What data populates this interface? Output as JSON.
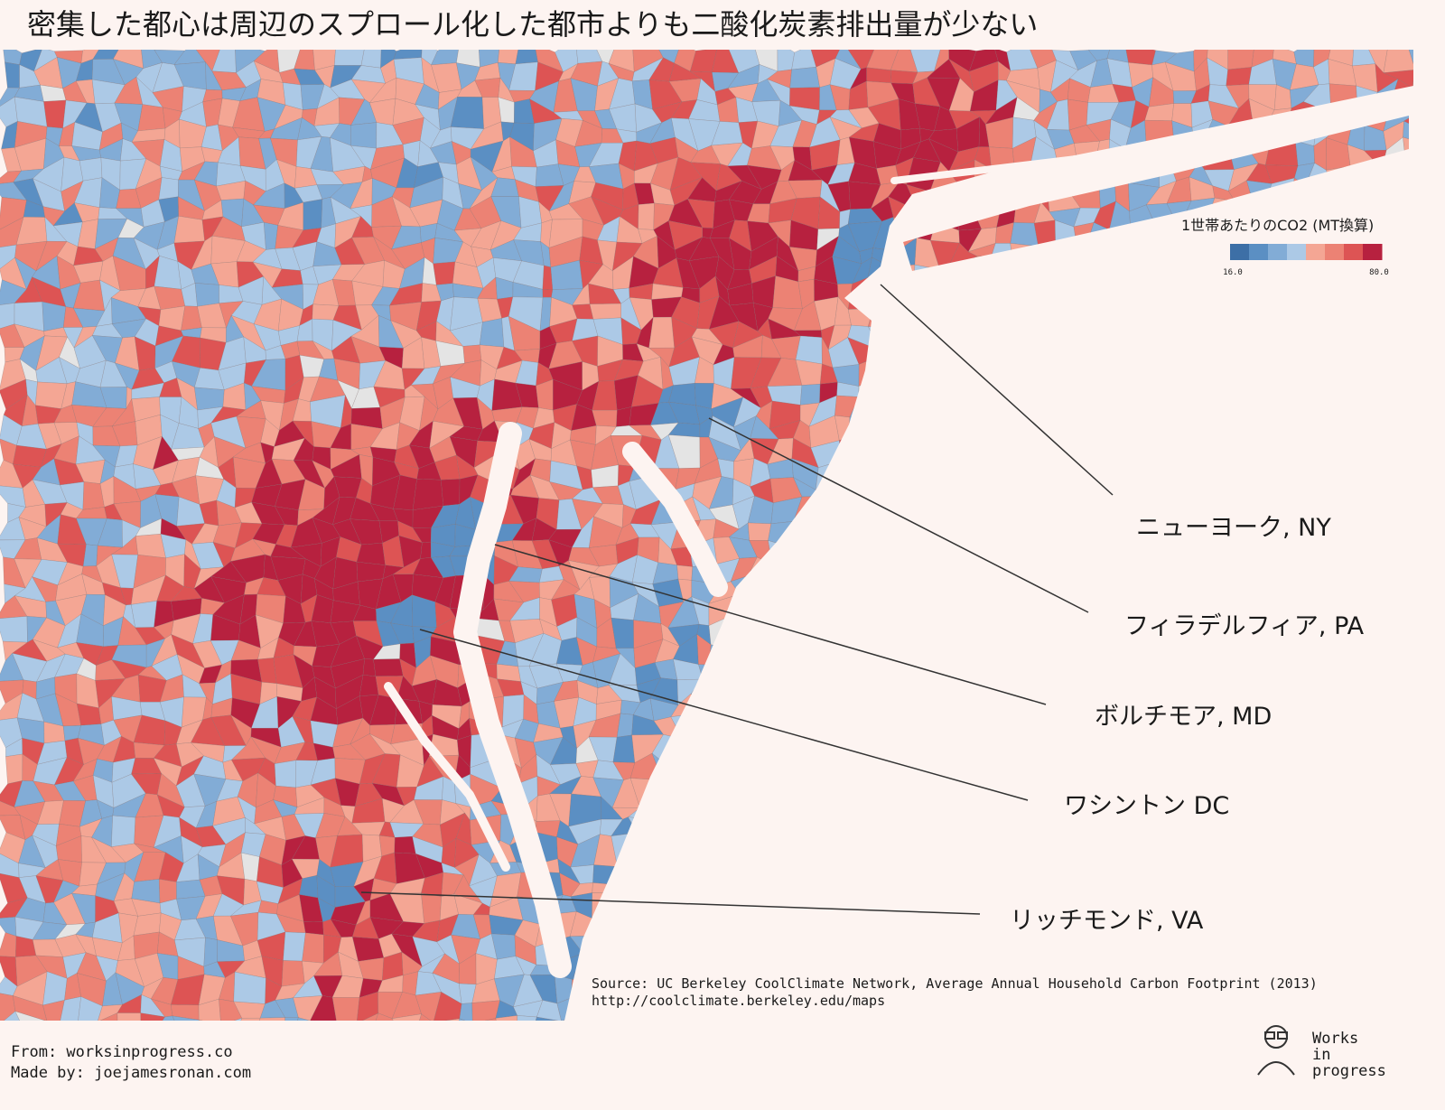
{
  "title": "密集した都心は周辺のスプロール化した都市よりも二酸化炭素排出量が少ない",
  "legend": {
    "title": "1世帯あたりのCO2 (MT換算)",
    "min_label": "16.0",
    "max_label": "80.0",
    "colors": [
      "#3d6fa6",
      "#5b8fc3",
      "#82acd6",
      "#acc9e6",
      "#f4a694",
      "#ec8274",
      "#dd5454",
      "#b7213f"
    ]
  },
  "cities": [
    {
      "label": "ニューヨーク, NY"
    },
    {
      "label": "フィラデルフィア, PA"
    },
    {
      "label": "ボルチモア, MD"
    },
    {
      "label": "ワシントン DC"
    },
    {
      "label": "リッチモンド, VA"
    }
  ],
  "source": {
    "line1": "Source: UC Berkeley CoolClimate Network, Average Annual Household Carbon Footprint (2013)",
    "line2": "http://coolclimate.berkeley.edu/maps"
  },
  "footer": {
    "from": "From: worksinprogress.co",
    "made_by": "Made by: joejamesronan.com"
  },
  "logo": {
    "line1": "Works",
    "line2": "in",
    "line3": "progress"
  }
}
